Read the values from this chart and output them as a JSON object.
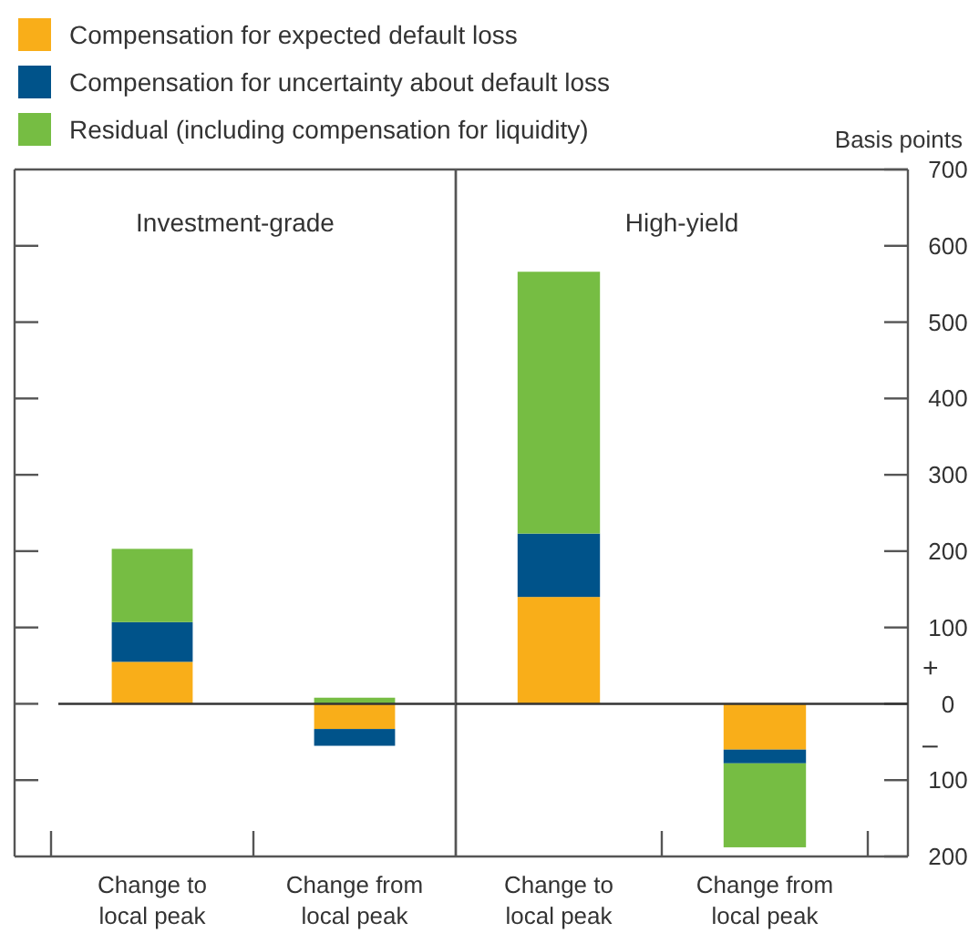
{
  "chart_data": [
    {
      "type": "bar",
      "title": "Investment-grade",
      "categories": [
        "Change to local peak",
        "Change from local peak"
      ],
      "stacked": true,
      "legend": "top",
      "tick_labels": "x",
      "ylim": [
        -200,
        700
      ],
      "yticks": [
        -100,
        0,
        100,
        200,
        300,
        400,
        500,
        600
      ],
      "series": [
        {
          "name": "Compensation for expected default loss",
          "color": "#f9ae19",
          "values": [
            55,
            -33
          ]
        },
        {
          "name": "Compensation for uncertainty about default loss",
          "color": "#00538a",
          "values": [
            52,
            -22
          ]
        },
        {
          "name": "Residual (including compensation for liquidity)",
          "color": "#76bd43",
          "values": [
            96,
            8
          ]
        }
      ]
    },
    {
      "type": "bar",
      "title": "High-yield",
      "categories": [
        "Change to local peak",
        "Change from local peak"
      ],
      "stacked": true,
      "ylabel": "Basis points",
      "ylim": [
        -200,
        700
      ],
      "yticks": [
        {
          "value": -200,
          "label": "200"
        },
        {
          "value": -100,
          "label": "100"
        },
        0,
        100,
        200,
        300,
        400,
        500,
        600,
        700
      ],
      "annotations": [
        "+",
        "–"
      ],
      "series": [
        {
          "color": "#f9ae19",
          "values": [
            140,
            -60
          ]
        },
        {
          "color": "#00538a",
          "values": [
            83,
            -18
          ]
        },
        {
          "color": "#76bd43",
          "values": [
            343,
            -110
          ]
        }
      ]
    }
  ]
}
